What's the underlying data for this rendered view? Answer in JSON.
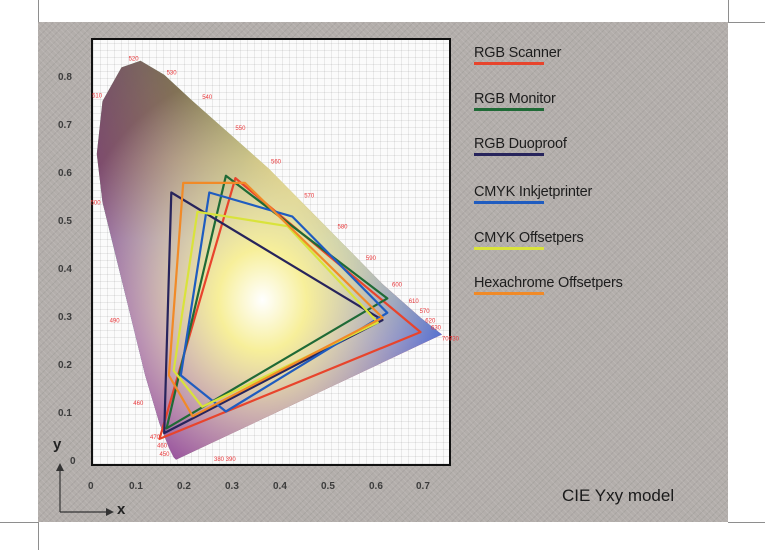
{
  "title": "CIE Yxy model",
  "axes": {
    "x_letter": "x",
    "y_letter": "y"
  },
  "colors": {
    "card": "#b3aeab",
    "plot_background": "#fbfbfb",
    "wavelength_label": "#e8373a"
  },
  "chart_data": {
    "type": "scatter",
    "description_kind": "chromaticity diagram with gamut polygons",
    "xlim": [
      0,
      0.75
    ],
    "ylim": [
      0,
      0.85
    ],
    "x_ticks": [
      "0",
      "0.1",
      "0.2",
      "0.3",
      "0.4",
      "0.5",
      "0.6",
      "0.7"
    ],
    "x_tick_values": [
      0,
      0.1,
      0.2,
      0.3,
      0.4,
      0.5,
      0.6,
      0.7
    ],
    "y_ticks": [
      "0",
      "0.1",
      "0.2",
      "0.3",
      "0.4",
      "0.5",
      "0.6",
      "0.7",
      "0.8"
    ],
    "y_tick_values": [
      0,
      0.1,
      0.2,
      0.3,
      0.4,
      0.5,
      0.6,
      0.7,
      0.8
    ],
    "grid": true,
    "legend_position": "right",
    "spectral_locus": [
      [
        0.175,
        0.005
      ],
      [
        0.17,
        0.01
      ],
      [
        0.16,
        0.03
      ],
      [
        0.14,
        0.08
      ],
      [
        0.11,
        0.18
      ],
      [
        0.08,
        0.3
      ],
      [
        0.05,
        0.42
      ],
      [
        0.02,
        0.54
      ],
      [
        0.008,
        0.64
      ],
      [
        0.02,
        0.75
      ],
      [
        0.06,
        0.82
      ],
      [
        0.1,
        0.834
      ],
      [
        0.15,
        0.805
      ],
      [
        0.21,
        0.75
      ],
      [
        0.29,
        0.68
      ],
      [
        0.37,
        0.61
      ],
      [
        0.45,
        0.53
      ],
      [
        0.53,
        0.45
      ],
      [
        0.61,
        0.37
      ],
      [
        0.69,
        0.3
      ],
      [
        0.735,
        0.265
      ]
    ],
    "wavelength_labels": [
      {
        "label": "520",
        "x": 0.075,
        "y": 0.834
      },
      {
        "label": "530",
        "x": 0.155,
        "y": 0.805
      },
      {
        "label": "540",
        "x": 0.23,
        "y": 0.754
      },
      {
        "label": "550",
        "x": 0.3,
        "y": 0.69
      },
      {
        "label": "560",
        "x": 0.375,
        "y": 0.62
      },
      {
        "label": "570",
        "x": 0.445,
        "y": 0.55
      },
      {
        "label": "580",
        "x": 0.515,
        "y": 0.485
      },
      {
        "label": "590",
        "x": 0.575,
        "y": 0.42
      },
      {
        "label": "600",
        "x": 0.63,
        "y": 0.365
      },
      {
        "label": "610",
        "x": 0.665,
        "y": 0.33
      },
      {
        "label": "570",
        "x": 0.688,
        "y": 0.31
      },
      {
        "label": "620",
        "x": 0.7,
        "y": 0.29
      },
      {
        "label": "630",
        "x": 0.712,
        "y": 0.275
      },
      {
        "label": "700",
        "x": 0.735,
        "y": 0.252
      },
      {
        "label": "730",
        "x": 0.75,
        "y": 0.252
      },
      {
        "label": "510",
        "x": -0.002,
        "y": 0.757
      },
      {
        "label": "500",
        "x": -0.005,
        "y": 0.535
      },
      {
        "label": "490",
        "x": 0.035,
        "y": 0.29
      },
      {
        "label": "460",
        "x": 0.085,
        "y": 0.118
      },
      {
        "label": "470",
        "x": 0.12,
        "y": 0.048
      },
      {
        "label": "460",
        "x": 0.135,
        "y": 0.03
      },
      {
        "label": "450",
        "x": 0.14,
        "y": 0.012
      },
      {
        "label": "380 390",
        "x": 0.255,
        "y": 0.002
      }
    ],
    "series": [
      {
        "name": "RGB Scanner",
        "color": "#e8442c",
        "points": [
          [
            0.14,
            0.048
          ],
          [
            0.3,
            0.59
          ],
          [
            0.69,
            0.27
          ]
        ]
      },
      {
        "name": "RGB Monitor",
        "color": "#1f6a36",
        "points": [
          [
            0.155,
            0.07
          ],
          [
            0.28,
            0.595
          ],
          [
            0.62,
            0.34
          ]
        ]
      },
      {
        "name": "RGB Duoproof",
        "color": "#27245c",
        "points": [
          [
            0.15,
            0.06
          ],
          [
            0.165,
            0.56
          ],
          [
            0.61,
            0.295
          ]
        ]
      },
      {
        "name": "CMYK Inkjetprinter",
        "color": "#1f5cc0",
        "points": [
          [
            0.185,
            0.18
          ],
          [
            0.245,
            0.56
          ],
          [
            0.42,
            0.51
          ],
          [
            0.62,
            0.31
          ],
          [
            0.28,
            0.105
          ]
        ]
      },
      {
        "name": "CMYK Offsetpers",
        "color": "#d9e33b",
        "points": [
          [
            0.17,
            0.19
          ],
          [
            0.22,
            0.52
          ],
          [
            0.41,
            0.49
          ],
          [
            0.6,
            0.29
          ],
          [
            0.23,
            0.115
          ]
        ]
      },
      {
        "name": "Hexachrome Offsetpers",
        "color": "#f18a27",
        "points": [
          [
            0.16,
            0.18
          ],
          [
            0.19,
            0.58
          ],
          [
            0.32,
            0.58
          ],
          [
            0.61,
            0.3
          ],
          [
            0.21,
            0.095
          ]
        ]
      }
    ]
  }
}
